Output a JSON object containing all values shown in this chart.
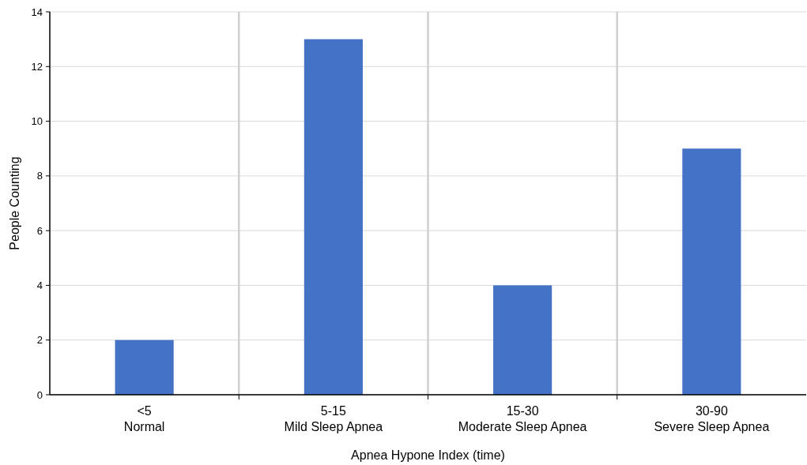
{
  "chart_data": {
    "type": "bar",
    "xlabel": "Apnea Hypone Index (time)",
    "ylabel": "People Counting",
    "categories": [
      "<5\nNormal",
      "5-15\nMild Sleep Apnea",
      "15-30\nModerate Sleep Apnea",
      "30-90\nSevere Sleep Apnea"
    ],
    "values": [
      2,
      13,
      4,
      9
    ],
    "color": "#4472c4",
    "ylim": [
      0,
      14
    ],
    "yticks": [
      0,
      2,
      4,
      6,
      8,
      10,
      12,
      14
    ],
    "grid": true
  }
}
